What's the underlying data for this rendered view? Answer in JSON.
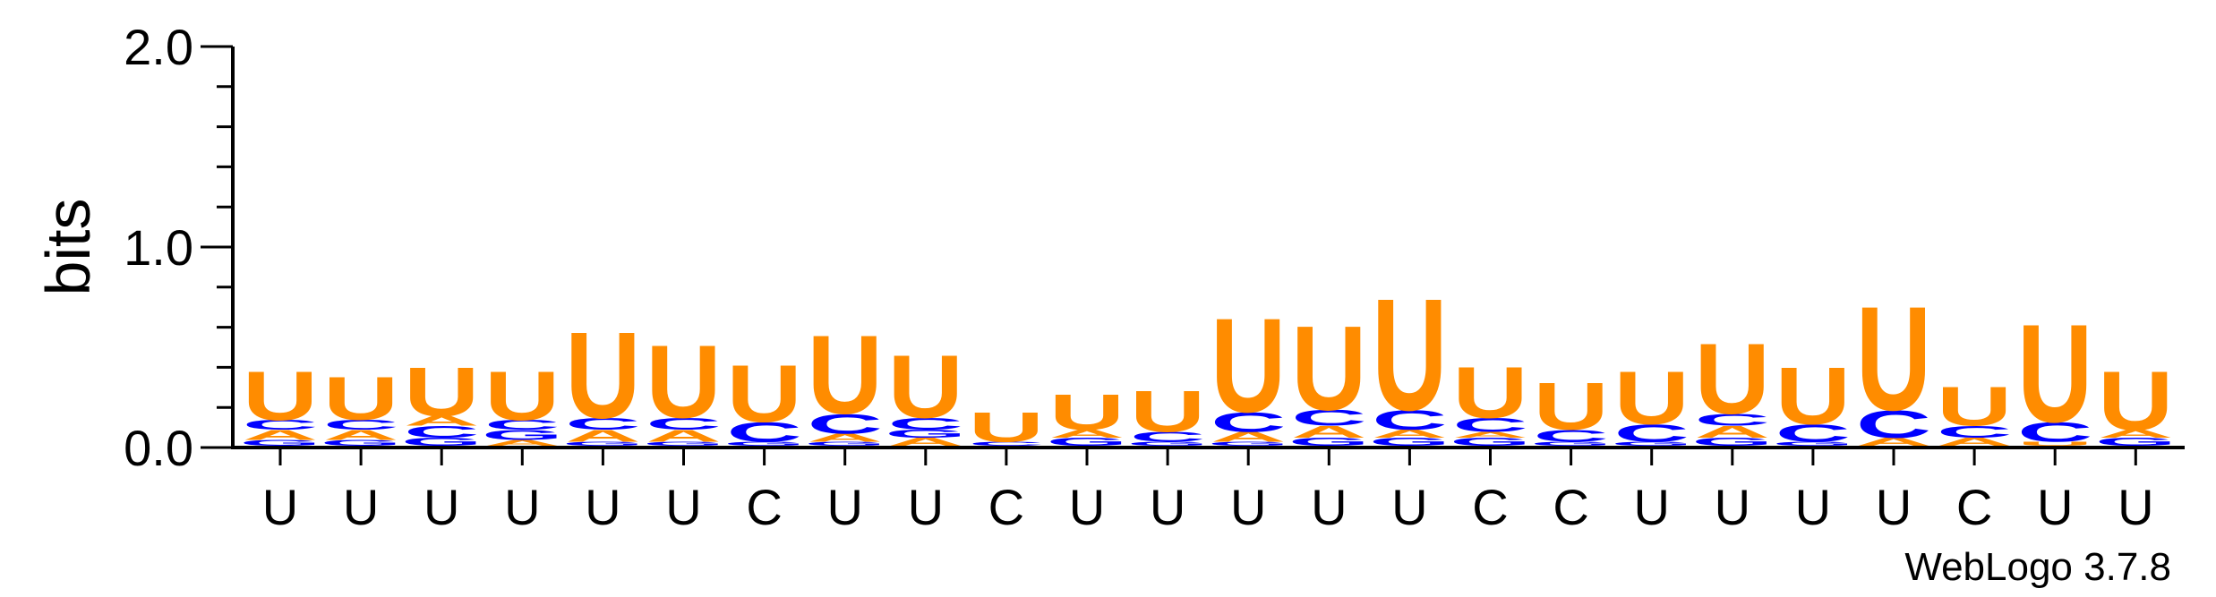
{
  "chart_data": {
    "type": "sequence-logo",
    "ylabel": "bits",
    "ylim": [
      0,
      2.0
    ],
    "yticks": [
      {
        "value": 0.0,
        "label": "0.0"
      },
      {
        "value": 1.0,
        "label": "1.0"
      },
      {
        "value": 2.0,
        "label": "2.0"
      }
    ],
    "categories": [
      "U",
      "U",
      "U",
      "U",
      "U",
      "U",
      "C",
      "U",
      "U",
      "C",
      "U",
      "U",
      "U",
      "U",
      "U",
      "C",
      "C",
      "U",
      "U",
      "U",
      "U",
      "C",
      "U",
      "U"
    ],
    "colors": {
      "U": "#ff8c00",
      "C": "#0000ff",
      "A": "#ff8c00",
      "G": "#0000ff"
    },
    "positions": [
      {
        "stack": [
          {
            "letter": "G",
            "bits": 0.03
          },
          {
            "letter": "A",
            "bits": 0.05
          },
          {
            "letter": "C",
            "bits": 0.05
          },
          {
            "letter": "U",
            "bits": 0.25
          }
        ]
      },
      {
        "stack": [
          {
            "letter": "G",
            "bits": 0.03
          },
          {
            "letter": "A",
            "bits": 0.05
          },
          {
            "letter": "C",
            "bits": 0.05
          },
          {
            "letter": "U",
            "bits": 0.22
          }
        ]
      },
      {
        "stack": [
          {
            "letter": "G",
            "bits": 0.04
          },
          {
            "letter": "C",
            "bits": 0.06
          },
          {
            "letter": "A",
            "bits": 0.05
          },
          {
            "letter": "U",
            "bits": 0.25
          }
        ]
      },
      {
        "stack": [
          {
            "letter": "A",
            "bits": 0.03
          },
          {
            "letter": "G",
            "bits": 0.05
          },
          {
            "letter": "C",
            "bits": 0.05
          },
          {
            "letter": "U",
            "bits": 0.25
          }
        ]
      },
      {
        "stack": [
          {
            "letter": "G",
            "bits": 0.02
          },
          {
            "letter": "A",
            "bits": 0.06
          },
          {
            "letter": "C",
            "bits": 0.06
          },
          {
            "letter": "U",
            "bits": 0.44
          }
        ]
      },
      {
        "stack": [
          {
            "letter": "G",
            "bits": 0.02
          },
          {
            "letter": "A",
            "bits": 0.06
          },
          {
            "letter": "C",
            "bits": 0.06
          },
          {
            "letter": "U",
            "bits": 0.37
          }
        ]
      },
      {
        "stack": [
          {
            "letter": "G",
            "bits": 0.02
          },
          {
            "letter": "C",
            "bits": 0.1
          },
          {
            "letter": "U",
            "bits": 0.29
          }
        ]
      },
      {
        "stack": [
          {
            "letter": "G",
            "bits": 0.02
          },
          {
            "letter": "A",
            "bits": 0.04
          },
          {
            "letter": "C",
            "bits": 0.1
          },
          {
            "letter": "U",
            "bits": 0.4
          }
        ]
      },
      {
        "stack": [
          {
            "letter": "A",
            "bits": 0.04
          },
          {
            "letter": "G",
            "bits": 0.04
          },
          {
            "letter": "C",
            "bits": 0.06
          },
          {
            "letter": "U",
            "bits": 0.32
          }
        ]
      },
      {
        "stack": [
          {
            "letter": "C",
            "bits": 0.02
          },
          {
            "letter": "U",
            "bits": 0.15
          }
        ]
      },
      {
        "stack": [
          {
            "letter": "G",
            "bits": 0.04
          },
          {
            "letter": "A",
            "bits": 0.04
          },
          {
            "letter": "U",
            "bits": 0.18
          }
        ]
      },
      {
        "stack": [
          {
            "letter": "G",
            "bits": 0.02
          },
          {
            "letter": "C",
            "bits": 0.05
          },
          {
            "letter": "U",
            "bits": 0.21
          }
        ]
      },
      {
        "stack": [
          {
            "letter": "G",
            "bits": 0.02
          },
          {
            "letter": "A",
            "bits": 0.05
          },
          {
            "letter": "C",
            "bits": 0.1
          },
          {
            "letter": "U",
            "bits": 0.48
          }
        ]
      },
      {
        "stack": [
          {
            "letter": "G",
            "bits": 0.04
          },
          {
            "letter": "A",
            "bits": 0.06
          },
          {
            "letter": "C",
            "bits": 0.08
          },
          {
            "letter": "U",
            "bits": 0.43
          }
        ]
      },
      {
        "stack": [
          {
            "letter": "G",
            "bits": 0.04
          },
          {
            "letter": "A",
            "bits": 0.04
          },
          {
            "letter": "C",
            "bits": 0.1
          },
          {
            "letter": "U",
            "bits": 0.57
          }
        ]
      },
      {
        "stack": [
          {
            "letter": "G",
            "bits": 0.04
          },
          {
            "letter": "A",
            "bits": 0.03
          },
          {
            "letter": "C",
            "bits": 0.07
          },
          {
            "letter": "U",
            "bits": 0.26
          }
        ]
      },
      {
        "stack": [
          {
            "letter": "G",
            "bits": 0.02
          },
          {
            "letter": "C",
            "bits": 0.06
          },
          {
            "letter": "U",
            "bits": 0.24
          }
        ]
      },
      {
        "stack": [
          {
            "letter": "G",
            "bits": 0.02
          },
          {
            "letter": "C",
            "bits": 0.09
          },
          {
            "letter": "U",
            "bits": 0.27
          }
        ]
      },
      {
        "stack": [
          {
            "letter": "G",
            "bits": 0.04
          },
          {
            "letter": "A",
            "bits": 0.06
          },
          {
            "letter": "C",
            "bits": 0.06
          },
          {
            "letter": "U",
            "bits": 0.36
          }
        ]
      },
      {
        "stack": [
          {
            "letter": "G",
            "bits": 0.02
          },
          {
            "letter": "C",
            "bits": 0.09
          },
          {
            "letter": "U",
            "bits": 0.29
          }
        ]
      },
      {
        "stack": [
          {
            "letter": "A",
            "bits": 0.04
          },
          {
            "letter": "C",
            "bits": 0.14
          },
          {
            "letter": "U",
            "bits": 0.53
          }
        ]
      },
      {
        "stack": [
          {
            "letter": "A",
            "bits": 0.04
          },
          {
            "letter": "C",
            "bits": 0.06
          },
          {
            "letter": "U",
            "bits": 0.2
          }
        ]
      },
      {
        "stack": [
          {
            "letter": "U",
            "bits": 0.02
          },
          {
            "letter": "C",
            "bits": 0.1
          },
          {
            "letter": "U",
            "bits": 0.5
          }
        ]
      },
      {
        "stack": [
          {
            "letter": "G",
            "bits": 0.04
          },
          {
            "letter": "A",
            "bits": 0.04
          },
          {
            "letter": "U",
            "bits": 0.3
          }
        ]
      }
    ],
    "credit": "WebLogo 3.7.8"
  }
}
